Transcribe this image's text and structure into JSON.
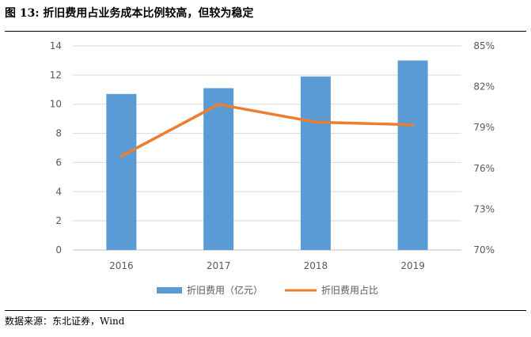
{
  "figure": {
    "title": "图  13:  折旧费用占业务成本比例较高，但较为稳定",
    "source": "数据来源：东北证券，Wind"
  },
  "colors": {
    "bar": "#5B9BD5",
    "line": "#ED7D31",
    "grid": "#D9D9D9",
    "axis": "#BFBFBF"
  },
  "chart_data": {
    "type": "bar+line",
    "title": "图  13:  折旧费用占业务成本比例较高，但较为稳定",
    "categories": [
      "2016",
      "2017",
      "2018",
      "2019"
    ],
    "series": [
      {
        "name": "折旧费用（亿元）",
        "type": "bar",
        "axis": "left",
        "values": [
          10.7,
          11.1,
          11.9,
          13.0
        ]
      },
      {
        "name": "折旧费用占比",
        "type": "line",
        "axis": "right",
        "values": [
          76.9,
          80.7,
          79.4,
          79.2
        ]
      }
    ],
    "left_axis": {
      "min": 0,
      "max": 14,
      "step": 2,
      "ticks": [
        "0",
        "2",
        "4",
        "6",
        "8",
        "10",
        "12",
        "14"
      ]
    },
    "right_axis": {
      "min": 70,
      "max": 85,
      "step": 3,
      "unit": "%",
      "ticks": [
        "70%",
        "73%",
        "76%",
        "79%",
        "82%",
        "85%"
      ]
    },
    "gridlines": true,
    "legend_position": "bottom"
  }
}
